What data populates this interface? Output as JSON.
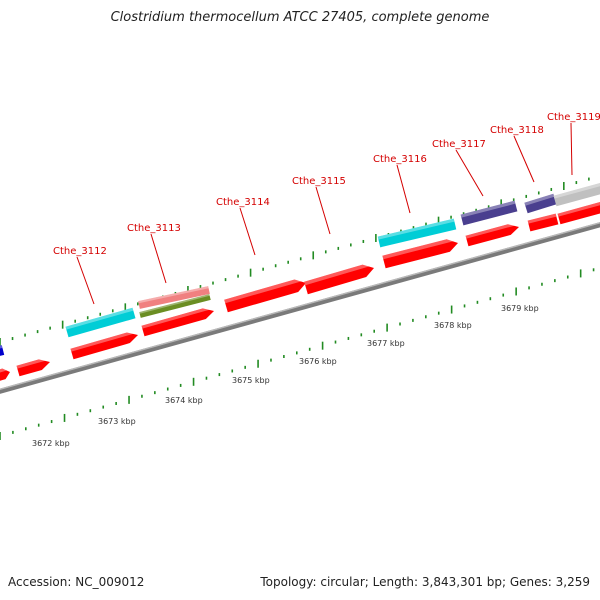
{
  "title": "Clostridium thermocellum ATCC 27405, complete genome",
  "footer": {
    "accession": "Accession: NC_009012",
    "summary": "Topology: circular; Length: 3,843,301 bp; Genes: 3,259"
  },
  "colors": {
    "red": "#ff0000",
    "cyan": "#00cdd6",
    "indigo": "#4a3f8f",
    "pink": "#f08080",
    "olive": "#6b8e23",
    "gray": "#c0c0c0",
    "blue": "#0000cc",
    "backbone": "#888888",
    "tick_green": "#228b22",
    "label_red": "#d40000"
  },
  "gene_labels": [
    "Cthe_3112",
    "Cthe_3113",
    "Cthe_3114",
    "Cthe_3115",
    "Cthe_3116",
    "Cthe_3117",
    "Cthe_3118",
    "Cthe_3119"
  ],
  "kbp_labels": [
    "3672 kbp",
    "3673 kbp",
    "3674 kbp",
    "3675 kbp",
    "3676 kbp",
    "3677 kbp",
    "3678 kbp",
    "3679 kbp"
  ]
}
